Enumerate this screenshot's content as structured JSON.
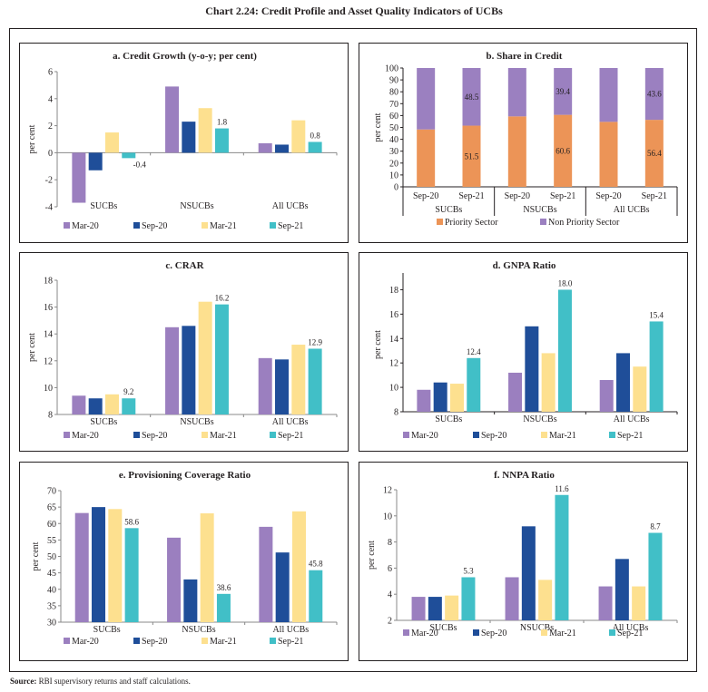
{
  "title": "Chart 2.24: Credit Profile and Asset Quality Indicators of UCBs",
  "source": {
    "label": "Source:",
    "text": " RBI supervisory returns and staff calculations."
  },
  "colors": {
    "Mar-20": "#9b7fbf",
    "Sep-20": "#1f4e99",
    "Mar-21": "#fde08f",
    "Sep-21": "#41bfc7",
    "Priority Sector": "#ec9457",
    "Non Priority Sector": "#9b80c0"
  },
  "chart_data": [
    {
      "id": "a",
      "type": "bar",
      "title": "a. Credit Growth (y-o-y; per cent)",
      "ylabel": "per cent",
      "xlabel": "",
      "categories": [
        "SUCBs",
        "NSUCBs",
        "All UCBs"
      ],
      "ylim": [
        -4,
        6
      ],
      "yticks": [
        -4,
        -2,
        0,
        2,
        4,
        6
      ],
      "grid": false,
      "legend": "bottom",
      "series": [
        {
          "name": "Mar-20",
          "values": [
            -3.7,
            4.9,
            0.7
          ]
        },
        {
          "name": "Sep-20",
          "values": [
            -1.3,
            2.3,
            0.6
          ]
        },
        {
          "name": "Mar-21",
          "values": [
            1.5,
            3.3,
            2.4
          ]
        },
        {
          "name": "Sep-21",
          "values": [
            -0.4,
            1.8,
            0.8
          ],
          "labels": [
            "-0.4",
            "1.8",
            "0.8"
          ]
        }
      ]
    },
    {
      "id": "b",
      "type": "bar",
      "stacked": true,
      "title": "b. Share in Credit",
      "ylabel": "per cent",
      "xlabel": "",
      "groups": [
        "SUCBs",
        "NSUCBs",
        "All UCBs"
      ],
      "categories": [
        "Sep-20",
        "Sep-21",
        "Sep-20",
        "Sep-21",
        "Sep-20",
        "Sep-21"
      ],
      "ylim": [
        0,
        100
      ],
      "yticks": [
        0,
        10,
        20,
        30,
        40,
        50,
        60,
        70,
        80,
        90,
        100
      ],
      "grid": false,
      "legend": "bottom",
      "series": [
        {
          "name": "Priority Sector",
          "values": [
            48.3,
            51.5,
            59.3,
            60.6,
            54.7,
            56.4
          ],
          "labels": [
            "",
            "51.5",
            "",
            "60.6",
            "",
            "56.4"
          ]
        },
        {
          "name": "Non Priority Sector",
          "values": [
            51.7,
            48.5,
            40.7,
            39.4,
            45.3,
            43.6
          ],
          "labels": [
            "",
            "48.5",
            "",
            "39.4",
            "",
            "43.6"
          ]
        }
      ]
    },
    {
      "id": "c",
      "type": "bar",
      "title": "c. CRAR",
      "ylabel": "per cent",
      "xlabel": "",
      "categories": [
        "SUCBs",
        "NSUCBs",
        "All UCBs"
      ],
      "ylim": [
        8,
        18
      ],
      "yticks": [
        8,
        10,
        12,
        14,
        16,
        18
      ],
      "grid": false,
      "legend": "bottom",
      "series": [
        {
          "name": "Mar-20",
          "values": [
            9.4,
            14.5,
            12.2
          ]
        },
        {
          "name": "Sep-20",
          "values": [
            9.2,
            14.6,
            12.1
          ]
        },
        {
          "name": "Mar-21",
          "values": [
            9.5,
            16.4,
            13.2
          ]
        },
        {
          "name": "Sep-21",
          "values": [
            9.2,
            16.2,
            12.9
          ],
          "labels": [
            "9.2",
            "16.2",
            "12.9"
          ]
        }
      ]
    },
    {
      "id": "d",
      "type": "bar",
      "title": "d. GNPA Ratio",
      "ylabel": "per cent",
      "xlabel": "",
      "categories": [
        "SUCBs",
        "NSUCBs",
        "All UCBs"
      ],
      "ylim": [
        8,
        19
      ],
      "yticks": [
        8,
        10,
        12,
        14,
        16,
        18
      ],
      "grid": false,
      "legend": "bottom",
      "series": [
        {
          "name": "Mar-20",
          "values": [
            9.8,
            11.2,
            10.6
          ]
        },
        {
          "name": "Sep-20",
          "values": [
            10.4,
            15.0,
            12.8
          ]
        },
        {
          "name": "Mar-21",
          "values": [
            10.3,
            12.8,
            11.7
          ]
        },
        {
          "name": "Sep-21",
          "values": [
            12.4,
            18.0,
            15.4
          ],
          "labels": [
            "12.4",
            "18.0",
            "15.4"
          ]
        }
      ]
    },
    {
      "id": "e",
      "type": "bar",
      "title": "e. Provisioning Coverage Ratio",
      "ylabel": "per cent",
      "xlabel": "",
      "categories": [
        "SUCBs",
        "NSUCBs",
        "All UCBs"
      ],
      "ylim": [
        30,
        70
      ],
      "yticks": [
        30,
        35,
        40,
        45,
        50,
        55,
        60,
        65,
        70
      ],
      "grid": false,
      "legend": "bottom",
      "series": [
        {
          "name": "Mar-20",
          "values": [
            63.2,
            55.7,
            59.0
          ]
        },
        {
          "name": "Sep-20",
          "values": [
            65.0,
            43.0,
            51.2
          ]
        },
        {
          "name": "Mar-21",
          "values": [
            64.4,
            63.1,
            63.7
          ]
        },
        {
          "name": "Sep-21",
          "values": [
            58.6,
            38.6,
            45.8
          ],
          "labels": [
            "58.6",
            "38.6",
            "45.8"
          ]
        }
      ]
    },
    {
      "id": "f",
      "type": "bar",
      "title": "f. NNPA Ratio",
      "ylabel": "per cent",
      "xlabel": "",
      "categories": [
        "SUCBs",
        "NSUCBs",
        "All UCBs"
      ],
      "ylim": [
        2,
        12
      ],
      "yticks": [
        2,
        4,
        6,
        8,
        10,
        12
      ],
      "grid": false,
      "legend": "bottom",
      "series": [
        {
          "name": "Mar-20",
          "values": [
            3.8,
            5.3,
            4.6
          ]
        },
        {
          "name": "Sep-20",
          "values": [
            3.8,
            9.2,
            6.7
          ]
        },
        {
          "name": "Mar-21",
          "values": [
            3.9,
            5.1,
            4.6
          ]
        },
        {
          "name": "Sep-21",
          "values": [
            5.3,
            11.6,
            8.7
          ],
          "labels": [
            "5.3",
            "11.6",
            "8.7"
          ]
        }
      ]
    }
  ]
}
